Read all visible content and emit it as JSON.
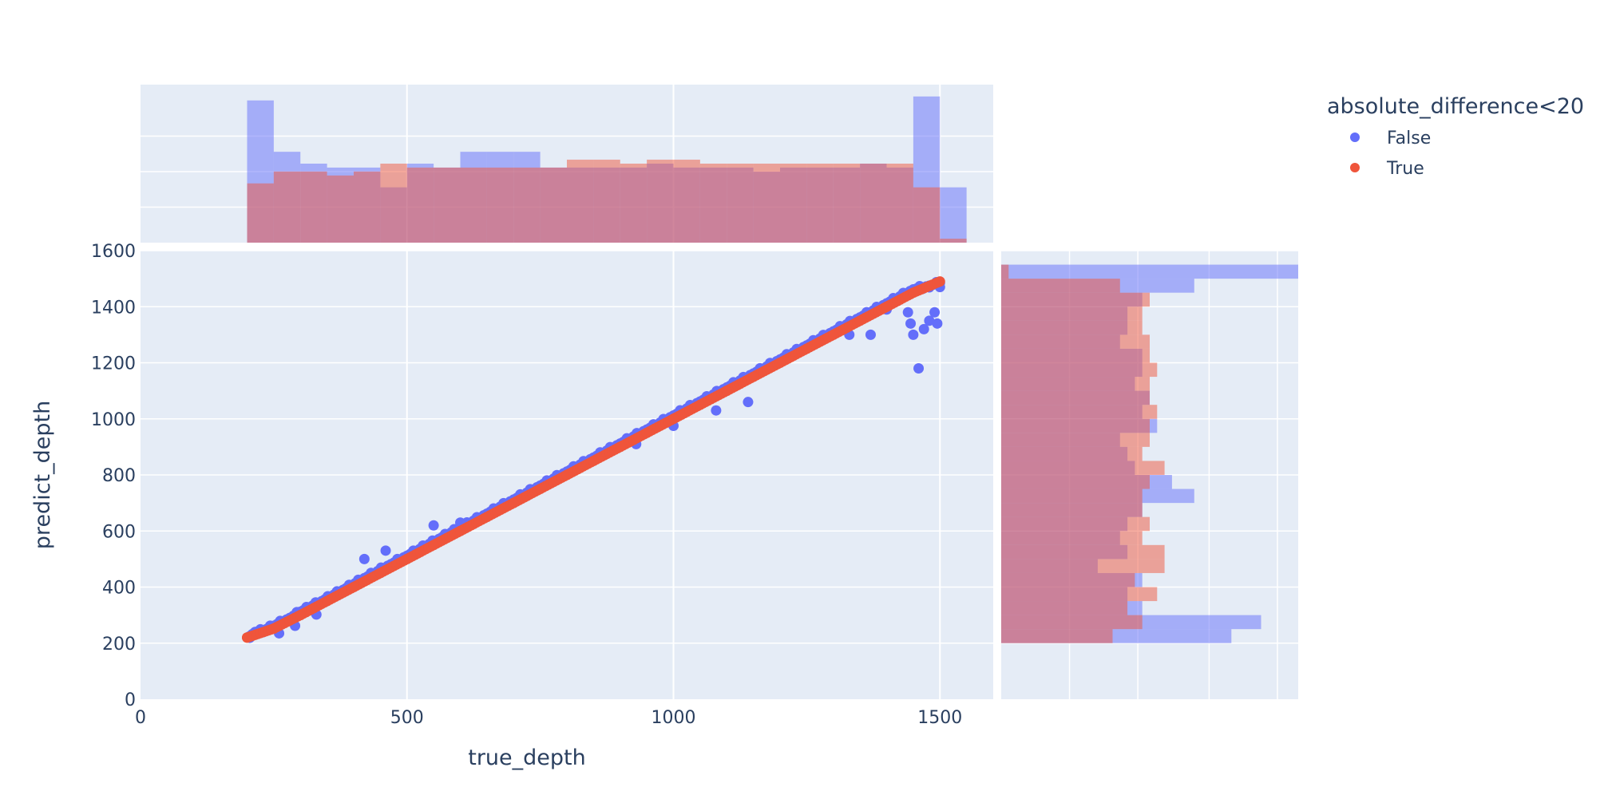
{
  "chart_data": {
    "type": "scatter",
    "title": "",
    "xlabel": "true_depth",
    "ylabel": "predict_depth",
    "xlim": [
      0,
      1600
    ],
    "ylim": [
      0,
      1600
    ],
    "x_ticks": [
      0,
      500,
      1000,
      1500
    ],
    "y_ticks": [
      0,
      200,
      400,
      600,
      800,
      1000,
      1200,
      1400,
      1600
    ],
    "grid": true,
    "legend_title": "absolute_difference<20",
    "legend_position": "top-right",
    "colors": {
      "False": "#636efa",
      "True": "#ef553b",
      "plot_bg": "#e5ecf6",
      "grid": "#ffffff",
      "text": "#2a3f5f"
    },
    "series": [
      {
        "name": "False",
        "color": "#636efa",
        "x": [
          205,
          215,
          230,
          250,
          280,
          300,
          340,
          380,
          420,
          470,
          500,
          560,
          600,
          650,
          700,
          750,
          800,
          850,
          900,
          950,
          1000,
          1050,
          1100,
          1150,
          1200,
          1250,
          1300,
          1350,
          1400,
          1450,
          1480,
          1500,
          420,
          460,
          550,
          600,
          930,
          1000,
          1080,
          1140,
          1330,
          1370,
          1400,
          1420,
          1440,
          1445,
          1450,
          1460,
          1470,
          1480,
          1490,
          1495,
          1500,
          260,
          290,
          330
        ],
        "y": [
          225,
          240,
          245,
          262,
          290,
          312,
          350,
          390,
          432,
          482,
          512,
          572,
          612,
          662,
          712,
          762,
          812,
          862,
          912,
          962,
          1012,
          1062,
          1112,
          1162,
          1212,
          1262,
          1312,
          1362,
          1412,
          1462,
          1475,
          1485,
          500,
          530,
          620,
          630,
          910,
          975,
          1030,
          1060,
          1300,
          1300,
          1390,
          1420,
          1380,
          1340,
          1300,
          1180,
          1320,
          1350,
          1380,
          1340,
          1470,
          235,
          262,
          302
        ]
      },
      {
        "name": "True",
        "color": "#ef553b",
        "x": [
          200,
          250,
          300,
          350,
          400,
          450,
          500,
          550,
          600,
          650,
          700,
          750,
          800,
          850,
          900,
          950,
          1000,
          1050,
          1100,
          1150,
          1200,
          1250,
          1300,
          1350,
          1400,
          1450,
          1500
        ],
        "y": [
          220,
          252,
          300,
          350,
          400,
          450,
          500,
          550,
          600,
          650,
          700,
          750,
          800,
          850,
          900,
          950,
          1000,
          1050,
          1100,
          1150,
          1200,
          1250,
          1300,
          1350,
          1400,
          1450,
          1490
        ]
      }
    ],
    "marginal_x_histogram": {
      "bins": [
        [
          200,
          250
        ],
        [
          250,
          300
        ],
        [
          300,
          350
        ],
        [
          350,
          400
        ],
        [
          400,
          450
        ],
        [
          450,
          500
        ],
        [
          500,
          550
        ],
        [
          550,
          600
        ],
        [
          600,
          650
        ],
        [
          650,
          700
        ],
        [
          700,
          750
        ],
        [
          750,
          800
        ],
        [
          800,
          850
        ],
        [
          850,
          900
        ],
        [
          900,
          950
        ],
        [
          950,
          1000
        ],
        [
          1000,
          1050
        ],
        [
          1050,
          1100
        ],
        [
          1100,
          1150
        ],
        [
          1150,
          1200
        ],
        [
          1200,
          1250
        ],
        [
          1250,
          1300
        ],
        [
          1300,
          1350
        ],
        [
          1350,
          1400
        ],
        [
          1400,
          1450
        ],
        [
          1450,
          1500
        ],
        [
          1500,
          1550
        ]
      ],
      "False": [
        36,
        23,
        20,
        19,
        19,
        14,
        20,
        19,
        23,
        23,
        23,
        19,
        19,
        19,
        19,
        20,
        19,
        19,
        19,
        18,
        19,
        19,
        19,
        20,
        19,
        37,
        14
      ],
      "True": [
        15,
        18,
        18,
        17,
        18,
        20,
        19,
        19,
        19,
        19,
        19,
        19,
        21,
        21,
        20,
        21,
        21,
        20,
        20,
        20,
        20,
        20,
        20,
        20,
        20,
        14,
        1
      ]
    },
    "marginal_y_histogram": {
      "bins": [
        [
          200,
          250
        ],
        [
          250,
          300
        ],
        [
          300,
          350
        ],
        [
          350,
          400
        ],
        [
          400,
          450
        ],
        [
          450,
          500
        ],
        [
          500,
          550
        ],
        [
          550,
          600
        ],
        [
          600,
          650
        ],
        [
          650,
          700
        ],
        [
          700,
          750
        ],
        [
          750,
          800
        ],
        [
          800,
          850
        ],
        [
          850,
          900
        ],
        [
          900,
          950
        ],
        [
          950,
          1000
        ],
        [
          1000,
          1050
        ],
        [
          1050,
          1100
        ],
        [
          1100,
          1150
        ],
        [
          1150,
          1200
        ],
        [
          1200,
          1250
        ],
        [
          1250,
          1300
        ],
        [
          1300,
          1350
        ],
        [
          1350,
          1400
        ],
        [
          1400,
          1450
        ],
        [
          1450,
          1500
        ],
        [
          1500,
          1550
        ]
      ],
      "False": [
        31,
        35,
        19,
        17,
        19,
        13,
        17,
        16,
        17,
        19,
        26,
        23,
        18,
        17,
        16,
        21,
        19,
        20,
        18,
        19,
        19,
        16,
        17,
        17,
        19,
        26,
        40
      ],
      "True": [
        15,
        19,
        17,
        21,
        18,
        22,
        22,
        19,
        20,
        19,
        19,
        20,
        22,
        19,
        20,
        20,
        21,
        20,
        20,
        21,
        20,
        20,
        19,
        19,
        20,
        16,
        1
      ]
    }
  }
}
